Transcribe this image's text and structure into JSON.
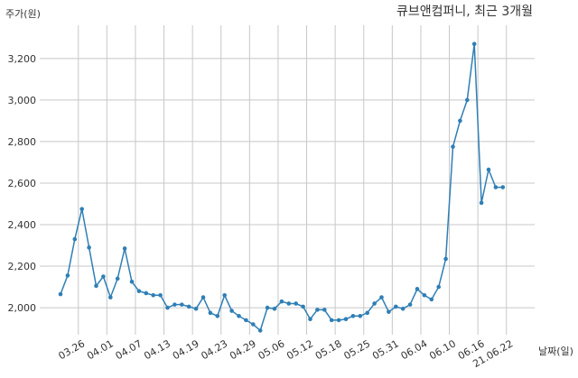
{
  "chart_data": {
    "type": "line",
    "title": "큐브앤컴퍼니, 최근 3개월",
    "ylabel": "주가(원)",
    "xlabel": "날짜(일)",
    "ylim": [
      1870,
      3360
    ],
    "yticks": [
      2000,
      2200,
      2400,
      2600,
      2800,
      3000,
      3200
    ],
    "ytick_labels": [
      "2,000",
      "2,200",
      "2,400",
      "2,600",
      "2,800",
      "3,000",
      "3,200"
    ],
    "xtick_labels": [
      "03.26",
      "04.01",
      "04.07",
      "04.13",
      "04.19",
      "04.23",
      "04.29",
      "05.06",
      "05.12",
      "05.18",
      "05.25",
      "05.31",
      "06.04",
      "06.10",
      "06.16",
      "21.06.22"
    ],
    "xtick_positions": [
      2.5,
      6.5,
      10.5,
      14.5,
      18.5,
      22.5,
      26.5,
      30.5,
      34.5,
      38.5,
      42.5,
      46.5,
      50.5,
      54.5,
      58.5,
      62.5
    ],
    "grid": true,
    "line_color": "#2f7fb5",
    "series": [
      {
        "values": [
          2065,
          2155,
          2330,
          2475,
          2290,
          2105,
          2150,
          2050,
          2140,
          2285,
          2125,
          2080,
          2070,
          2060,
          2060,
          2000,
          2015,
          2015,
          2005,
          1995,
          2050,
          1975,
          1960,
          2060,
          1985,
          1960,
          1940,
          1920,
          1890,
          2000,
          1995,
          2030,
          2020,
          2020,
          2005,
          1945,
          1990,
          1990,
          1940,
          1940,
          1945,
          1960,
          1960,
          1975,
          2020,
          2050,
          1980,
          2005,
          1995,
          2015,
          2090,
          2060,
          2040,
          2100,
          2235,
          2775,
          2900,
          3000,
          3270,
          2505,
          2665,
          2580,
          2580
        ]
      }
    ]
  }
}
